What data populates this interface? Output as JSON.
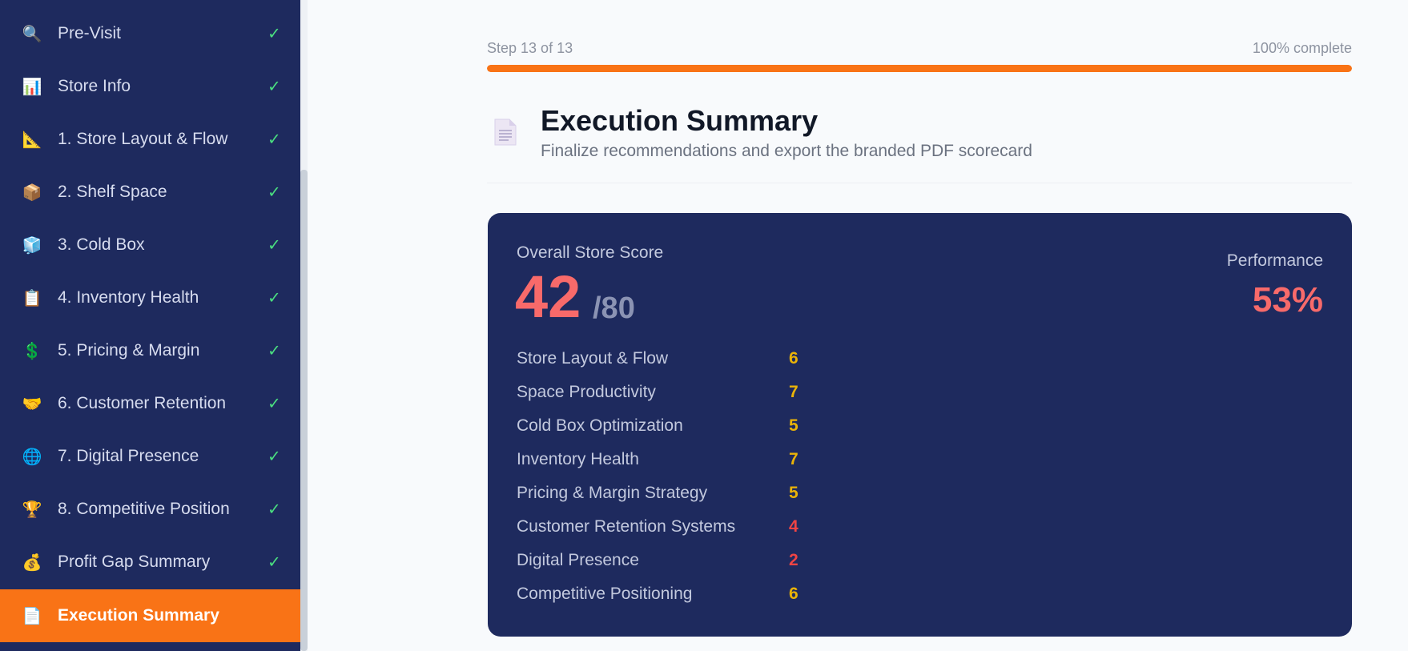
{
  "sidebar": {
    "items": [
      {
        "icon": "🔍",
        "icon_name": "magnifier-icon",
        "label": "Pre-Visit",
        "check": "✓"
      },
      {
        "icon": "📊",
        "icon_name": "bar-chart-icon",
        "label": "Store Info",
        "check": "✓"
      },
      {
        "icon": "📐",
        "icon_name": "triangle-ruler-icon",
        "label": "1. Store Layout & Flow",
        "check": "✓"
      },
      {
        "icon": "📦",
        "icon_name": "package-icon",
        "label": "2. Shelf Space",
        "check": "✓"
      },
      {
        "icon": "🧊",
        "icon_name": "ice-cube-icon",
        "label": "3. Cold Box",
        "check": "✓"
      },
      {
        "icon": "📋",
        "icon_name": "clipboard-icon",
        "label": "4. Inventory Health",
        "check": "✓"
      },
      {
        "icon": "💲",
        "icon_name": "dollar-sign-icon",
        "label": "5. Pricing & Margin",
        "check": "✓"
      },
      {
        "icon": "🤝",
        "icon_name": "handshake-icon",
        "label": "6. Customer Retention",
        "check": "✓"
      },
      {
        "icon": "🌐",
        "icon_name": "globe-icon",
        "label": "7. Digital Presence",
        "check": "✓"
      },
      {
        "icon": "🏆",
        "icon_name": "trophy-icon",
        "label": "8. Competitive Position",
        "check": "✓"
      },
      {
        "icon": "💰",
        "icon_name": "money-bag-icon",
        "label": "Profit Gap Summary",
        "check": "✓"
      },
      {
        "icon": "📄",
        "icon_name": "document-icon",
        "label": "Execution Summary",
        "check": "",
        "active": true
      }
    ]
  },
  "progress": {
    "step_text": "Step 13 of 13",
    "percent_text": "100% complete",
    "fraction": 1.0
  },
  "header": {
    "icon_name": "document-icon",
    "title": "Execution Summary",
    "subtitle": "Finalize recommendations and export the branded PDF scorecard"
  },
  "score_card": {
    "label": "Overall Store Score",
    "score": "42",
    "max": "/80",
    "performance_label": "Performance",
    "performance_value": "53%",
    "categories": [
      {
        "name": "Store Layout & Flow",
        "score": "6",
        "level": "mid"
      },
      {
        "name": "Space Productivity",
        "score": "7",
        "level": "mid"
      },
      {
        "name": "Cold Box Optimization",
        "score": "5",
        "level": "mid"
      },
      {
        "name": "Inventory Health",
        "score": "7",
        "level": "mid"
      },
      {
        "name": "Pricing & Margin Strategy",
        "score": "5",
        "level": "mid"
      },
      {
        "name": "Customer Retention Systems",
        "score": "4",
        "level": "low"
      },
      {
        "name": "Digital Presence",
        "score": "2",
        "level": "low"
      },
      {
        "name": "Competitive Positioning",
        "score": "6",
        "level": "mid"
      }
    ]
  },
  "colors": {
    "sidebar_bg": "#1e2a5e",
    "accent": "#f97316",
    "check": "#4ade80",
    "score_red": "#f86a6a",
    "score_mid": "#eab308",
    "score_low": "#ef4444"
  }
}
